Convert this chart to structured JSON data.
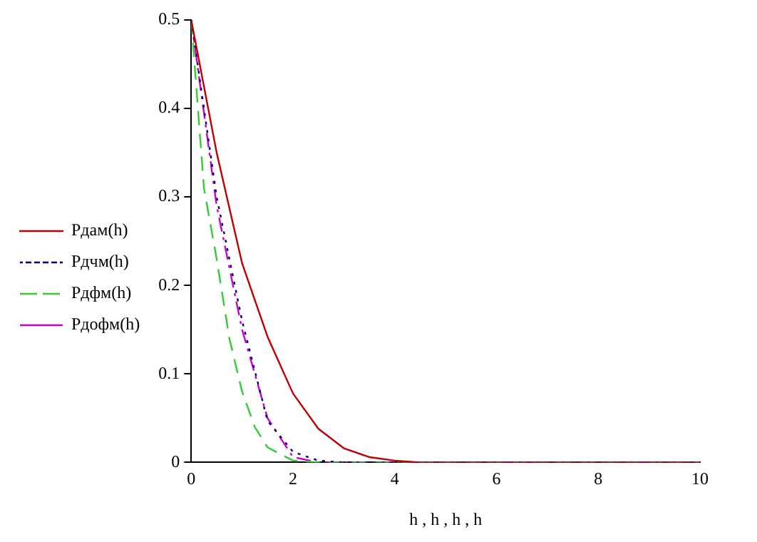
{
  "chart_data": {
    "type": "line",
    "xlabel": "h , h , h , h",
    "xlim": [
      0,
      10
    ],
    "xticks": [
      0,
      2,
      4,
      6,
      8,
      10
    ],
    "ylim": [
      0,
      0.5
    ],
    "yticks": [
      0,
      0.1,
      0.2,
      0.3,
      0.4,
      0.5
    ],
    "grid": false,
    "legend": "left",
    "marker": "none",
    "series": [
      {
        "name": "Pдам(h)",
        "color": "#c00000",
        "line_style": "solid",
        "x": [
          0,
          0.5,
          1,
          1.5,
          2,
          2.5,
          3,
          3.5,
          4,
          4.5,
          10
        ],
        "values": [
          0.5,
          0.35,
          0.225,
          0.142,
          0.078,
          0.038,
          0.016,
          0.006,
          0.002,
          0,
          0
        ]
      },
      {
        "name": "Pдчм(h)",
        "color": "#000080",
        "line_style": "dotted",
        "x": [
          0,
          0.5,
          1,
          1.5,
          2,
          2.5,
          3,
          10
        ],
        "values": [
          0.5,
          0.3,
          0.16,
          0.047,
          0.012,
          0.002,
          0,
          0
        ]
      },
      {
        "name": "Pдфм(h)",
        "color": "#33cc33",
        "line_style": "dashed",
        "x": [
          0,
          0.25,
          0.5,
          0.75,
          1,
          1.25,
          1.5,
          2,
          2.5,
          10
        ],
        "values": [
          0.5,
          0.31,
          0.23,
          0.14,
          0.08,
          0.04,
          0.017,
          0.002,
          0,
          0
        ]
      },
      {
        "name": "Pдофм(h)",
        "color": "#cc00cc",
        "line_style": "dashdot",
        "x": [
          0,
          0.5,
          1,
          1.5,
          2,
          2.5,
          10
        ],
        "values": [
          0.5,
          0.29,
          0.15,
          0.05,
          0.006,
          0,
          0
        ]
      }
    ]
  }
}
